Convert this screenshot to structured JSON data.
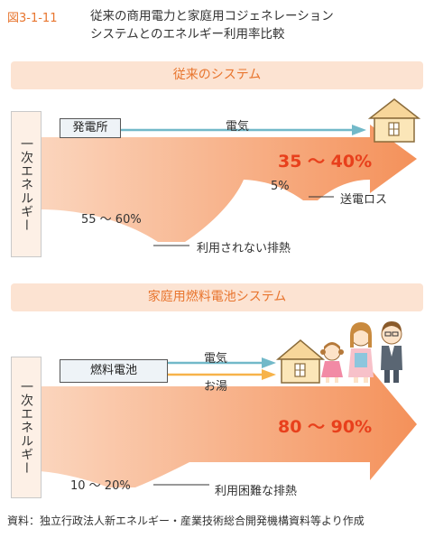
{
  "figure": {
    "number": "図3-1-11",
    "title_line1": "従来の商用電力と家庭用コジェネレーション",
    "title_line2": "システムとのエネルギー利用率比較"
  },
  "conventional": {
    "header": "従来のシステム",
    "primary_energy": "一次エネルギー",
    "plant": "発電所",
    "electricity": "電気",
    "used_percent": "35 ～ 40%",
    "loss_percent": "5%",
    "loss_label": "送電ロス",
    "waste_percent": "55 ～ 60%",
    "waste_label": "利用されない排熱"
  },
  "fuelcell": {
    "header": "家庭用燃料電池システム",
    "primary_energy": "一次エネルギー",
    "device": "燃料電池",
    "electricity": "電気",
    "hot_water": "お湯",
    "used_percent": "80 ～ 90%",
    "waste_percent": "10 ～ 20%",
    "waste_label": "利用困難な排熱"
  },
  "source": "資料：独立行政法人新エネルギー・産業技術総合開発機構資料等より作成",
  "colors": {
    "accent": "#e8752e",
    "arrow_orange": "#f6a87a",
    "electric_arrow": "#72b9c9",
    "hotwater_arrow": "#f7b34a",
    "highlight_red": "#e8401c",
    "header_bg": "#fce3d2"
  }
}
